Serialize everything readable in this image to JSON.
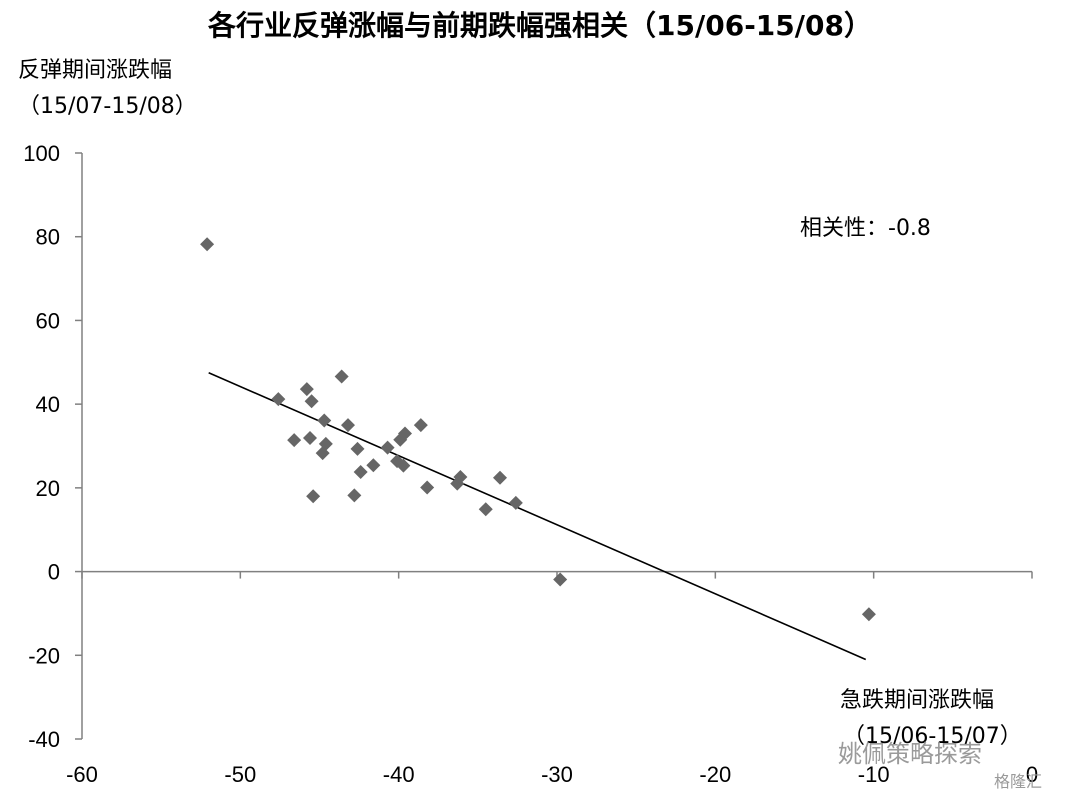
{
  "chart_data": {
    "type": "scatter",
    "title": "各行业反弹涨幅与前期跌幅强相关（15/06-15/08）",
    "ylabel": [
      "反弹期间涨跌幅",
      "（15/07-15/08）"
    ],
    "xlabel": [
      "急跌期间涨跌幅",
      "（15/06-15/07）"
    ],
    "annotation": "相关性：-0.8",
    "xlim": [
      -60,
      0
    ],
    "ylim": [
      -40,
      100
    ],
    "xticks": [
      -60,
      -50,
      -40,
      -30,
      -20,
      -10,
      0
    ],
    "yticks": [
      -40,
      -20,
      0,
      20,
      40,
      60,
      80,
      100
    ],
    "grid": false,
    "marker": "diamond",
    "marker_color": "#666666",
    "trendline": {
      "x": [
        -52,
        -10.5
      ],
      "y": [
        47.5,
        -21
      ]
    },
    "x": [
      -52.1,
      -47.6,
      -45.8,
      -45.5,
      -46.6,
      -45.6,
      -45.4,
      -44.7,
      -44.6,
      -44.8,
      -43.6,
      -43.2,
      -42.8,
      -42.6,
      -42.4,
      -41.6,
      -40.7,
      -40.1,
      -39.9,
      -39.7,
      -39.6,
      -38.6,
      -38.2,
      -36.3,
      -36.1,
      -34.5,
      -33.6,
      -32.6,
      -29.8,
      -10.3
    ],
    "y": [
      78.2,
      41.2,
      43.6,
      40.7,
      31.4,
      31.9,
      18.0,
      36.1,
      30.5,
      28.3,
      46.6,
      35.0,
      18.2,
      29.3,
      23.8,
      25.4,
      29.6,
      26.4,
      31.5,
      25.3,
      33.0,
      35.0,
      20.1,
      21.0,
      22.6,
      14.9,
      22.4,
      16.4,
      -1.9,
      -10.2
    ]
  },
  "watermark": {
    "account": "姚佩策略探索",
    "brand": "格隆汇"
  }
}
